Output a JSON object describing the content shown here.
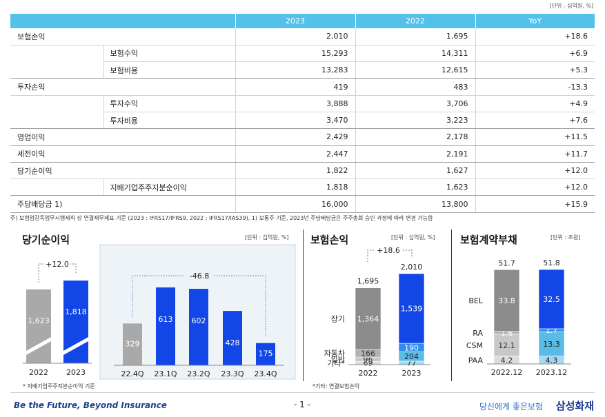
{
  "unit_top": "[단위 : 십억원, %]",
  "table": {
    "headers": [
      "",
      "2023",
      "2022",
      "YoY"
    ],
    "rows": [
      {
        "label": "보험손익",
        "sub": "",
        "v2023": "2,010",
        "v2022": "1,695",
        "yoy": "+18.6"
      },
      {
        "label": "",
        "sub": "보험수익",
        "v2023": "15,293",
        "v2022": "14,311",
        "yoy": "+6.9"
      },
      {
        "label": "",
        "sub": "보험비용",
        "v2023": "13,283",
        "v2022": "12,615",
        "yoy": "+5.3"
      },
      {
        "label": "투자손익",
        "sub": "",
        "v2023": "419",
        "v2022": "483",
        "yoy": "-13.3"
      },
      {
        "label": "",
        "sub": "투자수익",
        "v2023": "3,888",
        "v2022": "3,706",
        "yoy": "+4.9"
      },
      {
        "label": "",
        "sub": "투자비용",
        "v2023": "3,470",
        "v2022": "3,223",
        "yoy": "+7.6"
      },
      {
        "label": "영업이익",
        "sub": "",
        "v2023": "2,429",
        "v2022": "2,178",
        "yoy": "+11.5"
      },
      {
        "label": "세전이익",
        "sub": "",
        "v2023": "2,447",
        "v2022": "2,191",
        "yoy": "+11.7"
      },
      {
        "label": "당기순이익",
        "sub": "",
        "v2023": "1,822",
        "v2022": "1,627",
        "yoy": "+12.0"
      },
      {
        "label": "",
        "sub": "지배기업주주지분순이익",
        "v2023": "1,818",
        "v2022": "1,623",
        "yoy": "+12.0"
      },
      {
        "label": "주당배당금 1)",
        "sub": "",
        "v2023": "16,000",
        "v2022": "13,800",
        "yoy": "+15.9"
      }
    ]
  },
  "footnote": "주) 보험업감독업무시행세칙 상 연결재무제표 기준 (2023 : IFRS17/IFRS9, 2022 : IFRS17/IAS39), 1) 보통주 기준, 2023년 주당배당금은 주주총회 승인 과정에 따라 변경 가능함",
  "panels": {
    "net_income": {
      "title": "당기순이익",
      "unit": "[단위 : 십억원, %]",
      "note": "* 지배기업주주지분순이익 기준"
    },
    "insurance_income": {
      "title": "보험손익",
      "unit": "[단위 : 십억원, %]",
      "note": "*기타: 연결보험손익"
    },
    "contract_liab": {
      "title": "보험계약부채",
      "unit": "[단위 : 조원]"
    }
  },
  "chart_data": [
    {
      "type": "bar",
      "title": "당기순이익",
      "categories": [
        "2022",
        "2023"
      ],
      "values": [
        1623,
        1818
      ],
      "change_label": "+12.0",
      "colors": [
        "#a9a9a9",
        "#1346e6"
      ]
    },
    {
      "type": "bar",
      "categories": [
        "22.4Q",
        "23.1Q",
        "23.2Q",
        "23.3Q",
        "23.4Q"
      ],
      "values": [
        329,
        613,
        602,
        428,
        175
      ],
      "change_label": "-46.8",
      "colors": [
        "#a9a9a9",
        "#1346e6",
        "#1346e6",
        "#1346e6",
        "#1346e6"
      ]
    },
    {
      "type": "bar",
      "title": "보험손익",
      "stacked": true,
      "categories": [
        "2022",
        "2023"
      ],
      "totals": [
        "1,695",
        "2,010"
      ],
      "change_label": "+18.6",
      "series": [
        {
          "name": "장기",
          "values": [
            1364,
            1539
          ]
        },
        {
          "name": "자동차",
          "values": [
            166,
            190
          ]
        },
        {
          "name": "일반",
          "values": [
            96,
            204
          ]
        },
        {
          "name": "기타*",
          "values": [
            69,
            77
          ]
        }
      ]
    },
    {
      "type": "bar",
      "title": "보험계약부채",
      "stacked": true,
      "categories": [
        "2022.12",
        "2023.12"
      ],
      "totals": [
        "51.7",
        "51.8"
      ],
      "series": [
        {
          "name": "BEL",
          "values": [
            33.8,
            32.5
          ]
        },
        {
          "name": "RA",
          "values": [
            1.6,
            1.7
          ]
        },
        {
          "name": "CSM",
          "values": [
            12.1,
            13.3
          ]
        },
        {
          "name": "PAA",
          "values": [
            4.2,
            4.3
          ]
        }
      ]
    }
  ],
  "footer": {
    "slogan": "Be the Future, Beyond Insurance",
    "page": "- 1 -",
    "tagline": "당신에게 좋은보험",
    "brand": "삼성화재"
  }
}
